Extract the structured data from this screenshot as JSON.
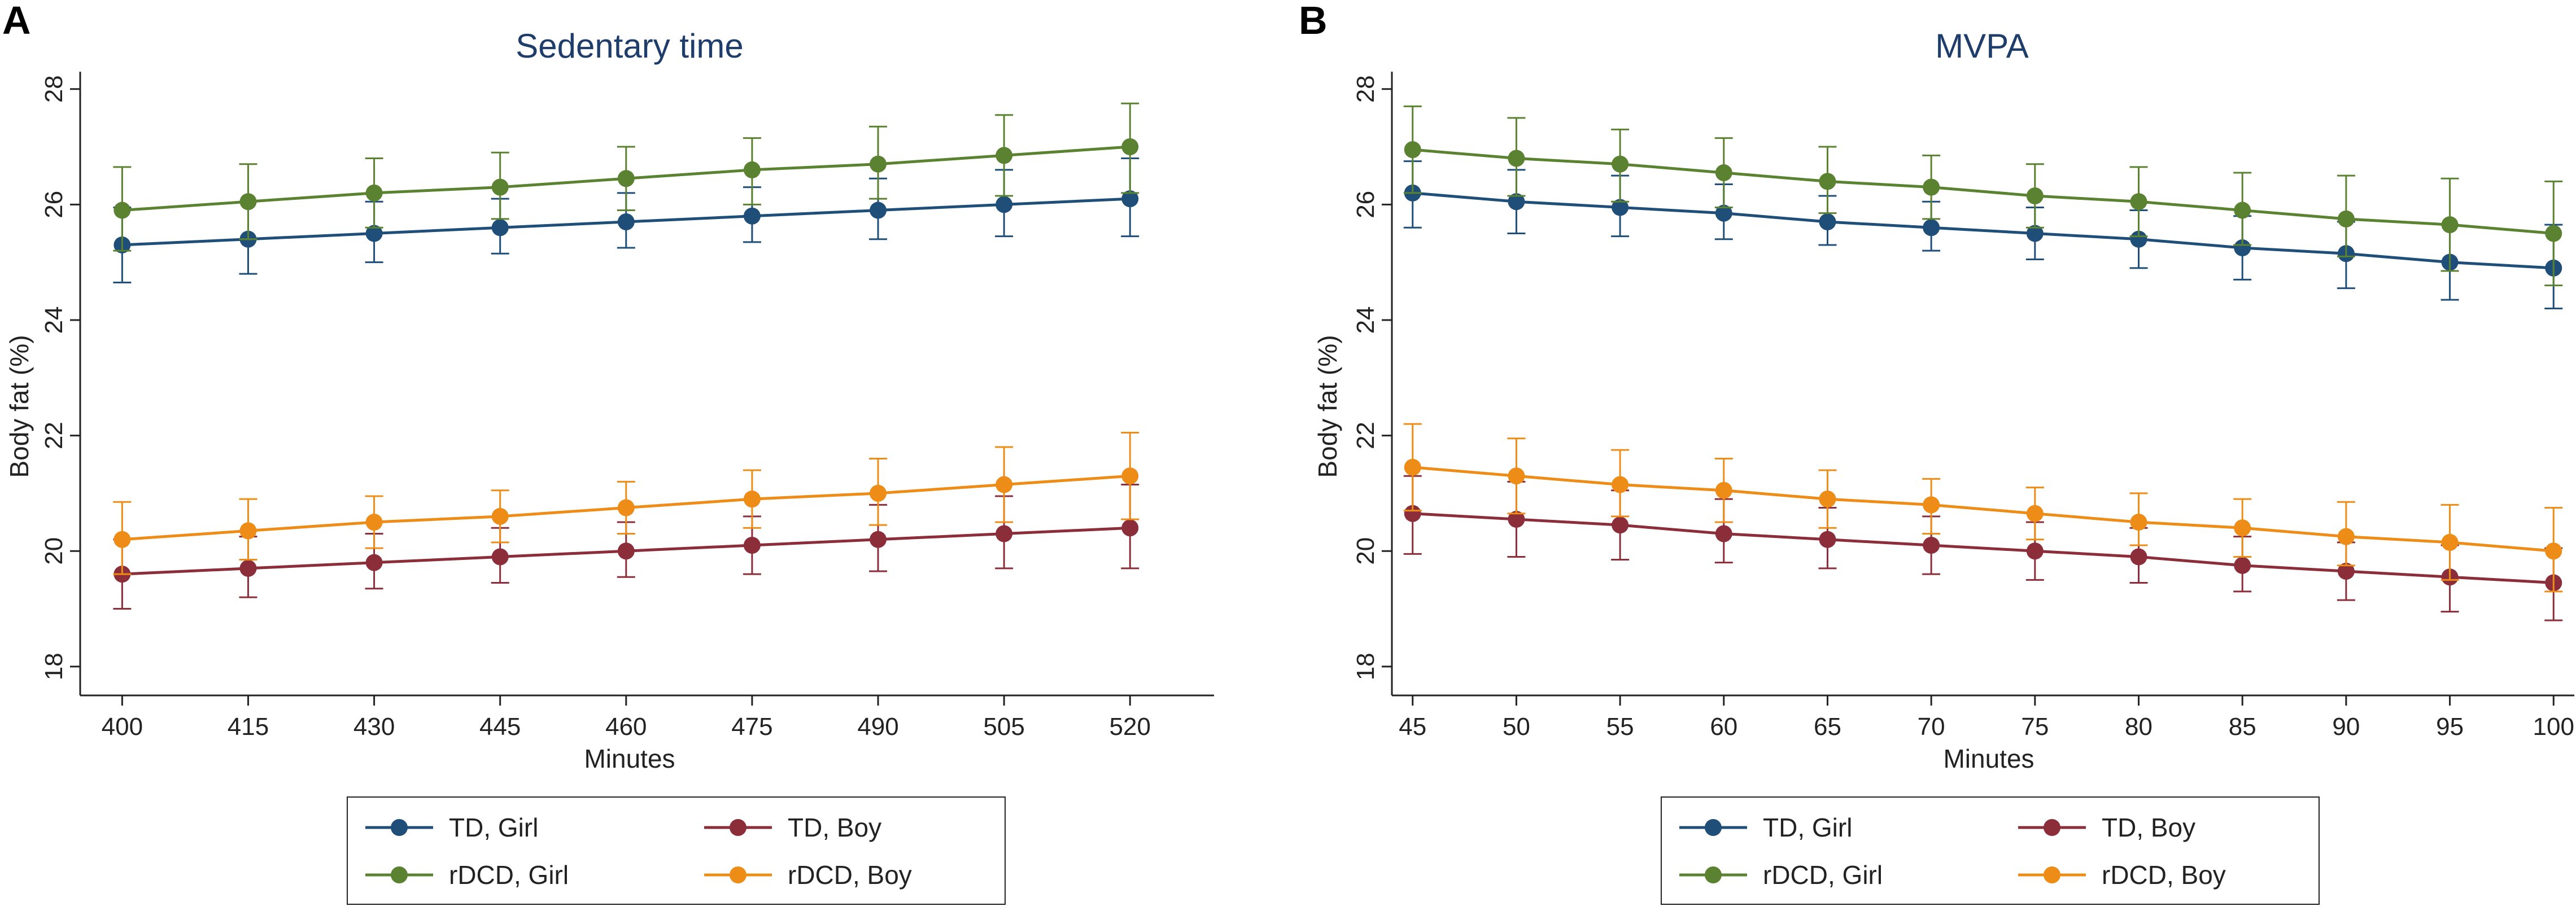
{
  "colors": {
    "td_girl": "#1f4e79",
    "td_boy": "#8b2e3a",
    "rdcd_girl": "#5a8231",
    "rdcd_boy": "#ed8c16"
  },
  "chart_data": [
    {
      "type": "line",
      "panel_label": "A",
      "title": "Sedentary time",
      "xlabel": "Minutes",
      "ylabel": "Body fat (%)",
      "xlim": [
        395,
        530
      ],
      "ylim": [
        17.5,
        28.3
      ],
      "xticks": [
        400,
        415,
        430,
        445,
        460,
        475,
        490,
        505,
        520
      ],
      "yticks": [
        18,
        20,
        22,
        24,
        26,
        28
      ],
      "x": [
        400,
        415,
        430,
        445,
        460,
        475,
        490,
        505,
        520
      ],
      "series": [
        {
          "key": "td_girl",
          "name": "TD, Girl",
          "values": [
            25.3,
            25.4,
            25.5,
            25.6,
            25.7,
            25.8,
            25.9,
            26.0,
            26.1
          ],
          "lower": [
            24.65,
            24.8,
            25.0,
            25.15,
            25.25,
            25.35,
            25.4,
            25.45,
            25.45
          ],
          "upper": [
            25.95,
            26.05,
            26.05,
            26.1,
            26.2,
            26.3,
            26.45,
            26.6,
            26.8
          ]
        },
        {
          "key": "td_boy",
          "name": "TD, Boy",
          "values": [
            19.6,
            19.7,
            19.8,
            19.9,
            20.0,
            20.1,
            20.2,
            20.3,
            20.4
          ],
          "lower": [
            19.0,
            19.2,
            19.35,
            19.45,
            19.55,
            19.6,
            19.65,
            19.7,
            19.7
          ],
          "upper": [
            20.2,
            20.25,
            20.3,
            20.4,
            20.5,
            20.6,
            20.8,
            20.95,
            21.15
          ]
        },
        {
          "key": "rdcd_girl",
          "name": "rDCD, Girl",
          "values": [
            25.9,
            26.05,
            26.2,
            26.3,
            26.45,
            26.6,
            26.7,
            26.85,
            27.0
          ],
          "lower": [
            25.2,
            25.4,
            25.6,
            25.75,
            25.9,
            26.0,
            26.1,
            26.15,
            26.2
          ],
          "upper": [
            26.65,
            26.7,
            26.8,
            26.9,
            27.0,
            27.15,
            27.35,
            27.55,
            27.75
          ]
        },
        {
          "key": "rdcd_boy",
          "name": "rDCD, Boy",
          "values": [
            20.2,
            20.35,
            20.5,
            20.6,
            20.75,
            20.9,
            21.0,
            21.15,
            21.3
          ],
          "lower": [
            19.6,
            19.85,
            20.05,
            20.15,
            20.3,
            20.4,
            20.45,
            20.5,
            20.55
          ],
          "upper": [
            20.85,
            20.9,
            20.95,
            21.05,
            21.2,
            21.4,
            21.6,
            21.8,
            22.05
          ]
        }
      ],
      "legend": "bottom"
    },
    {
      "type": "line",
      "panel_label": "B",
      "title": "MVPA",
      "xlabel": "Minutes",
      "ylabel": "Body fat (%)",
      "xlim": [
        44,
        101
      ],
      "ylim": [
        17.5,
        28.3
      ],
      "xticks": [
        45,
        50,
        55,
        60,
        65,
        70,
        75,
        80,
        85,
        90,
        95,
        100
      ],
      "yticks": [
        18,
        20,
        22,
        24,
        26,
        28
      ],
      "x": [
        45,
        50,
        55,
        60,
        65,
        70,
        75,
        80,
        85,
        90,
        95,
        100
      ],
      "series": [
        {
          "key": "td_girl",
          "name": "TD, Girl",
          "values": [
            26.2,
            26.05,
            25.95,
            25.85,
            25.7,
            25.6,
            25.5,
            25.4,
            25.25,
            25.15,
            25.0,
            24.9
          ],
          "lower": [
            25.6,
            25.5,
            25.45,
            25.4,
            25.3,
            25.2,
            25.05,
            24.9,
            24.7,
            24.55,
            24.35,
            24.2
          ],
          "upper": [
            26.75,
            26.6,
            26.5,
            26.35,
            26.15,
            26.05,
            25.95,
            25.9,
            25.8,
            25.7,
            25.65,
            25.65
          ]
        },
        {
          "key": "td_boy",
          "name": "TD, Boy",
          "values": [
            20.65,
            20.55,
            20.45,
            20.3,
            20.2,
            20.1,
            20.0,
            19.9,
            19.75,
            19.65,
            19.55,
            19.45
          ],
          "lower": [
            19.95,
            19.9,
            19.85,
            19.8,
            19.7,
            19.6,
            19.5,
            19.45,
            19.3,
            19.15,
            18.95,
            18.8
          ],
          "upper": [
            21.3,
            21.2,
            21.05,
            20.9,
            20.75,
            20.6,
            20.5,
            20.4,
            20.25,
            20.15,
            20.1,
            20.05
          ]
        },
        {
          "key": "rdcd_girl",
          "name": "rDCD, Girl",
          "values": [
            26.95,
            26.8,
            26.7,
            26.55,
            26.4,
            26.3,
            26.15,
            26.05,
            25.9,
            25.75,
            25.65,
            25.5
          ],
          "lower": [
            26.2,
            26.15,
            26.05,
            25.95,
            25.85,
            25.75,
            25.6,
            25.45,
            25.3,
            25.1,
            24.85,
            24.6
          ],
          "upper": [
            27.7,
            27.5,
            27.3,
            27.15,
            27.0,
            26.85,
            26.7,
            26.65,
            26.55,
            26.5,
            26.45,
            26.4
          ]
        },
        {
          "key": "rdcd_boy",
          "name": "rDCD, Boy",
          "values": [
            21.45,
            21.3,
            21.15,
            21.05,
            20.9,
            20.8,
            20.65,
            20.5,
            20.4,
            20.25,
            20.15,
            20.0
          ],
          "lower": [
            20.7,
            20.65,
            20.6,
            20.5,
            20.4,
            20.3,
            20.2,
            20.1,
            19.9,
            19.75,
            19.5,
            19.3
          ],
          "upper": [
            22.2,
            21.95,
            21.75,
            21.6,
            21.4,
            21.25,
            21.1,
            21.0,
            20.9,
            20.85,
            20.8,
            20.75
          ]
        }
      ],
      "legend": "bottom"
    }
  ],
  "legend_order": [
    "td_girl",
    "td_boy",
    "rdcd_girl",
    "rdcd_boy"
  ],
  "legend_names": {
    "td_girl": "TD, Girl",
    "td_boy": "TD, Boy",
    "rdcd_girl": "rDCD, Girl",
    "rdcd_boy": "rDCD, Boy"
  }
}
